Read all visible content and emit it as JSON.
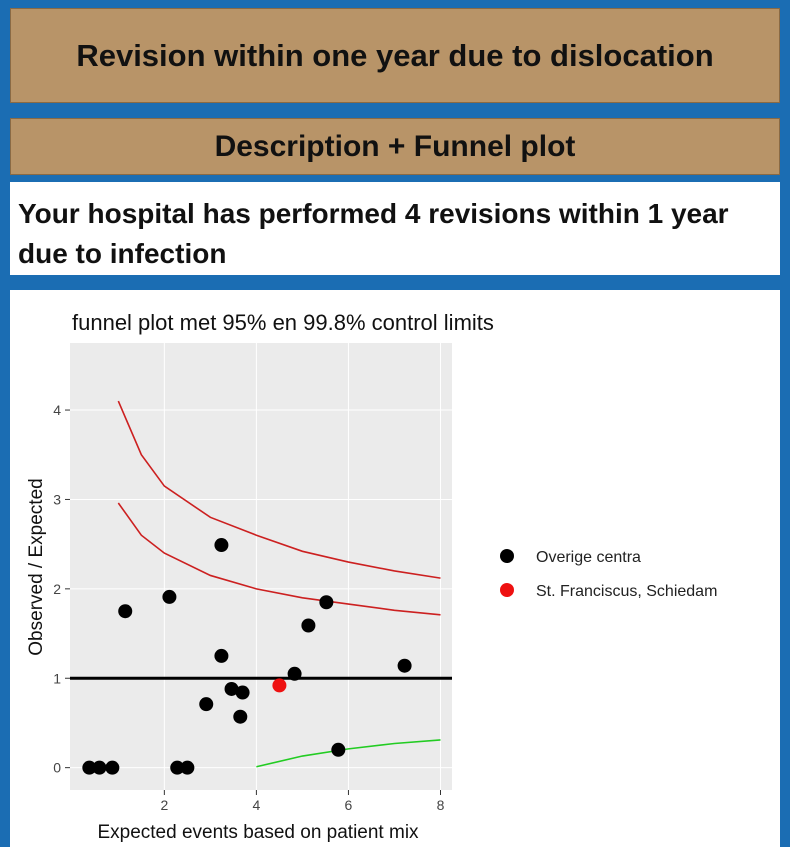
{
  "header": {
    "title": "Revision within one year due to dislocation",
    "subtitle": "Description + Funnel plot"
  },
  "description": "Your hospital has performed 4 revisions within 1 year due to infection",
  "chart_data": {
    "type": "scatter",
    "title": "funnel plot met 95% en 99.8% control limits",
    "x_label": "Expected events based on patient mix",
    "y_label": "Observed / Expected",
    "xlim": [
      -0.05,
      8.25
    ],
    "ylim": [
      -0.25,
      4.75
    ],
    "xticks": [
      2,
      4,
      6,
      8
    ],
    "yticks": [
      0,
      1,
      2,
      3,
      4
    ],
    "reference_line": 1,
    "series": [
      {
        "name": "Overige centra",
        "color": "#000000",
        "x": [
          0.37,
          0.59,
          0.87,
          1.15,
          2.11,
          2.28,
          2.5,
          2.91,
          3.24,
          3.24,
          3.46,
          3.7,
          3.65,
          4.83,
          5.13,
          5.52,
          5.78,
          7.22
        ],
        "values": [
          0,
          0,
          0,
          1.75,
          1.91,
          0,
          0,
          0.71,
          2.49,
          1.25,
          0.88,
          0.84,
          0.57,
          1.05,
          1.59,
          1.85,
          0.2,
          1.14
        ]
      },
      {
        "name": "St. Franciscus, Schiedam",
        "color": "#ee1111",
        "x": [
          4.5
        ],
        "values": [
          0.92
        ]
      }
    ],
    "lines": [
      {
        "color": "#cc2020",
        "x": [
          1,
          1.5,
          2,
          3,
          4,
          5,
          6,
          7,
          8
        ],
        "values": [
          4.1,
          3.5,
          3.15,
          2.8,
          2.6,
          2.42,
          2.3,
          2.2,
          2.12
        ]
      },
      {
        "color": "#cc2020",
        "x": [
          1,
          1.5,
          2,
          3,
          4,
          5,
          6,
          7,
          8
        ],
        "values": [
          2.96,
          2.6,
          2.4,
          2.15,
          2.0,
          1.9,
          1.83,
          1.76,
          1.71
        ]
      },
      {
        "color": "#22cc22",
        "x": [
          4,
          5,
          6,
          7,
          8
        ],
        "values": [
          0.01,
          0.13,
          0.21,
          0.27,
          0.31
        ]
      }
    ]
  }
}
